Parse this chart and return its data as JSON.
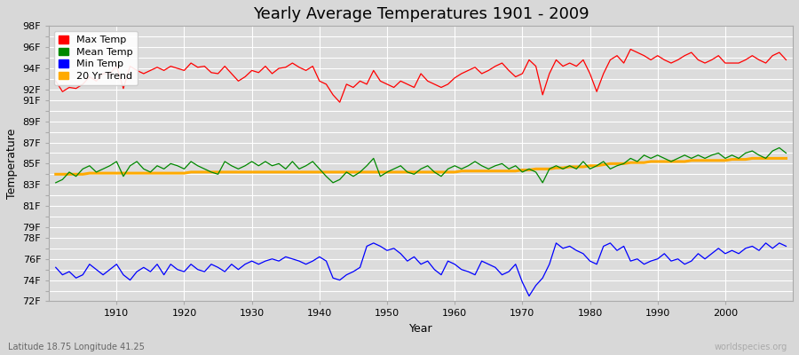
{
  "title": "Yearly Average Temperatures 1901 - 2009",
  "xlabel": "Year",
  "ylabel": "Temperature",
  "x_start": 1901,
  "x_end": 2009,
  "fig_bg_color": "#d8d8d8",
  "plot_bg_color": "#dcdcdc",
  "grid_color": "#ffffff",
  "ylim": [
    72,
    98
  ],
  "xlim_left": 1900,
  "xlim_right": 2010,
  "legend_labels": [
    "Max Temp",
    "Mean Temp",
    "Min Temp",
    "20 Yr Trend"
  ],
  "legend_colors": [
    "#ff0000",
    "#008800",
    "#0000ff",
    "#ffaa00"
  ],
  "ytick_positions": [
    72,
    73,
    74,
    75,
    76,
    77,
    78,
    79,
    80,
    81,
    82,
    83,
    84,
    85,
    86,
    87,
    88,
    89,
    90,
    91,
    92,
    93,
    94,
    95,
    96,
    97,
    98
  ],
  "ytick_shown": {
    "72": true,
    "74": true,
    "76": true,
    "78": true,
    "79": true,
    "81": true,
    "83": true,
    "85": true,
    "87": true,
    "89": true,
    "91": true,
    "92": true,
    "94": true,
    "96": true,
    "98": true
  },
  "xtick_positions": [
    1910,
    1920,
    1930,
    1940,
    1950,
    1960,
    1970,
    1980,
    1990,
    2000
  ],
  "max_temps": [
    92.8,
    91.8,
    92.2,
    92.1,
    92.5,
    93.2,
    92.8,
    93.5,
    93.5,
    94.2,
    92.1,
    94.2,
    93.8,
    93.5,
    93.8,
    94.1,
    93.8,
    94.2,
    94.0,
    93.8,
    94.5,
    94.1,
    94.2,
    93.6,
    93.5,
    94.2,
    93.5,
    92.8,
    93.2,
    93.8,
    93.6,
    94.2,
    93.5,
    94.0,
    94.1,
    94.5,
    94.1,
    93.8,
    94.2,
    92.8,
    92.5,
    91.5,
    90.8,
    92.5,
    92.2,
    92.8,
    92.5,
    93.8,
    92.8,
    92.5,
    92.2,
    92.8,
    92.5,
    92.2,
    93.5,
    92.8,
    92.5,
    92.2,
    92.5,
    93.1,
    93.5,
    93.8,
    94.1,
    93.5,
    93.8,
    94.2,
    94.5,
    93.8,
    93.2,
    93.5,
    94.8,
    94.2,
    91.5,
    93.5,
    94.8,
    94.2,
    94.5,
    94.2,
    94.8,
    93.5,
    91.8,
    93.5,
    94.8,
    95.2,
    94.5,
    95.8,
    95.5,
    95.2,
    94.8,
    95.2,
    94.8,
    94.5,
    94.8,
    95.2,
    95.5,
    94.8,
    94.5,
    94.8,
    95.2,
    94.5,
    94.5,
    94.5,
    94.8,
    95.2,
    94.8,
    94.5,
    95.2,
    95.5,
    94.8
  ],
  "mean_temps": [
    83.2,
    83.5,
    84.2,
    83.8,
    84.5,
    84.8,
    84.2,
    84.5,
    84.8,
    85.2,
    83.8,
    84.8,
    85.2,
    84.5,
    84.2,
    84.8,
    84.5,
    85.0,
    84.8,
    84.5,
    85.2,
    84.8,
    84.5,
    84.2,
    84.0,
    85.2,
    84.8,
    84.5,
    84.8,
    85.2,
    84.8,
    85.2,
    84.8,
    85.0,
    84.5,
    85.2,
    84.5,
    84.8,
    85.2,
    84.5,
    83.8,
    83.2,
    83.5,
    84.2,
    83.8,
    84.2,
    84.8,
    85.5,
    83.8,
    84.2,
    84.5,
    84.8,
    84.2,
    84.0,
    84.5,
    84.8,
    84.2,
    83.8,
    84.5,
    84.8,
    84.5,
    84.8,
    85.2,
    84.8,
    84.5,
    84.8,
    85.0,
    84.5,
    84.8,
    84.2,
    84.5,
    84.2,
    83.2,
    84.5,
    84.8,
    84.5,
    84.8,
    84.5,
    85.2,
    84.5,
    84.8,
    85.2,
    84.5,
    84.8,
    85.0,
    85.5,
    85.2,
    85.8,
    85.5,
    85.8,
    85.5,
    85.2,
    85.5,
    85.8,
    85.5,
    85.8,
    85.5,
    85.8,
    86.0,
    85.5,
    85.8,
    85.5,
    86.0,
    86.2,
    85.8,
    85.5,
    86.2,
    86.5,
    86.0
  ],
  "min_temps": [
    75.2,
    74.5,
    74.8,
    74.2,
    74.5,
    75.5,
    75.0,
    74.5,
    75.0,
    75.5,
    74.5,
    74.0,
    74.8,
    75.2,
    74.8,
    75.5,
    74.5,
    75.5,
    75.0,
    74.8,
    75.5,
    75.0,
    74.8,
    75.5,
    75.2,
    74.8,
    75.5,
    75.0,
    75.5,
    75.8,
    75.5,
    75.8,
    76.0,
    75.8,
    76.2,
    76.0,
    75.8,
    75.5,
    75.8,
    76.2,
    75.8,
    74.2,
    74.0,
    74.5,
    74.8,
    75.2,
    77.2,
    77.5,
    77.2,
    76.8,
    77.0,
    76.5,
    75.8,
    76.2,
    75.5,
    75.8,
    75.0,
    74.5,
    75.8,
    75.5,
    75.0,
    74.8,
    74.5,
    75.8,
    75.5,
    75.2,
    74.5,
    74.8,
    75.5,
    73.8,
    72.5,
    73.5,
    74.2,
    75.5,
    77.5,
    77.0,
    77.2,
    76.8,
    76.5,
    75.8,
    75.5,
    77.2,
    77.5,
    76.8,
    77.2,
    75.8,
    76.0,
    75.5,
    75.8,
    76.0,
    76.5,
    75.8,
    76.0,
    75.5,
    75.8,
    76.5,
    76.0,
    76.5,
    77.0,
    76.5,
    76.8,
    76.5,
    77.0,
    77.2,
    76.8,
    77.5,
    77.0,
    77.5,
    77.2
  ],
  "trend_temps": [
    84.0,
    84.0,
    84.0,
    84.0,
    84.0,
    84.1,
    84.1,
    84.1,
    84.1,
    84.1,
    84.1,
    84.1,
    84.1,
    84.1,
    84.1,
    84.1,
    84.1,
    84.1,
    84.1,
    84.1,
    84.2,
    84.2,
    84.2,
    84.2,
    84.2,
    84.2,
    84.2,
    84.2,
    84.2,
    84.2,
    84.2,
    84.2,
    84.2,
    84.2,
    84.2,
    84.2,
    84.2,
    84.2,
    84.2,
    84.2,
    84.2,
    84.2,
    84.2,
    84.2,
    84.2,
    84.2,
    84.2,
    84.2,
    84.2,
    84.2,
    84.2,
    84.2,
    84.2,
    84.2,
    84.2,
    84.2,
    84.2,
    84.2,
    84.2,
    84.2,
    84.3,
    84.3,
    84.3,
    84.3,
    84.3,
    84.3,
    84.3,
    84.3,
    84.3,
    84.4,
    84.4,
    84.5,
    84.5,
    84.5,
    84.6,
    84.6,
    84.7,
    84.7,
    84.7,
    84.8,
    84.8,
    84.9,
    85.0,
    85.0,
    85.0,
    85.1,
    85.1,
    85.1,
    85.2,
    85.2,
    85.2,
    85.2,
    85.2,
    85.2,
    85.3,
    85.3,
    85.3,
    85.3,
    85.3,
    85.3,
    85.4,
    85.4,
    85.4,
    85.5,
    85.5,
    85.5,
    85.5,
    85.5,
    85.5
  ],
  "watermark": "worldspecies.org",
  "footnote": "Latitude 18.75 Longitude 41.25",
  "title_fontsize": 13,
  "label_fontsize": 9,
  "tick_fontsize": 8,
  "legend_fontsize": 8,
  "watermark_fontsize": 7,
  "footnote_fontsize": 7
}
